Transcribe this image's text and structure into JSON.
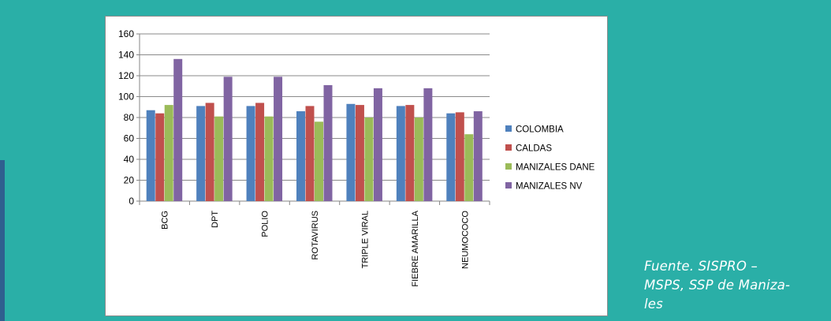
{
  "colors": {
    "background": "#2aafa7",
    "series": [
      "#4f81bd",
      "#c0504d",
      "#9bbb59",
      "#8064a2"
    ]
  },
  "source_note": "Fuente. SISPRO – MSPS, SSP de Maniza-les",
  "source_lines": [
    "Fuente. SISPRO –",
    "MSPS, SSP de Maniza-",
    "les"
  ],
  "chart_data": {
    "type": "bar",
    "title": "",
    "xlabel": "",
    "ylabel": "",
    "ylim": [
      0,
      160
    ],
    "yticks": [
      0,
      20,
      40,
      60,
      80,
      100,
      120,
      140,
      160
    ],
    "grid": true,
    "legend_position": "right",
    "categories": [
      "BCG",
      "DPT",
      "POLIO",
      "ROTAVIRUS",
      "TRIPLE VIRAL",
      "FIEBRE AMARILLA",
      "NEUMOCOCO"
    ],
    "series": [
      {
        "name": "COLOMBIA",
        "values": [
          87,
          91,
          91,
          86,
          93,
          91,
          84
        ]
      },
      {
        "name": "CALDAS",
        "values": [
          84,
          94,
          94,
          91,
          92,
          92,
          85
        ]
      },
      {
        "name": "MANIZALES DANE",
        "values": [
          92,
          81,
          81,
          76,
          80,
          80,
          64
        ]
      },
      {
        "name": "MANIZALES NV",
        "values": [
          136,
          119,
          119,
          111,
          108,
          108,
          86
        ]
      }
    ]
  }
}
